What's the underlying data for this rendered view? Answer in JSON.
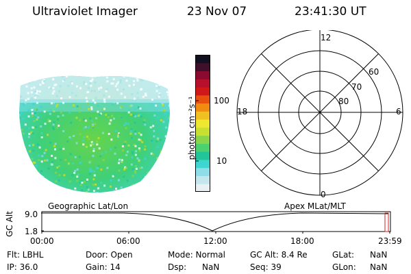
{
  "header": {
    "instrument": "Ultraviolet Imager",
    "date": "23 Nov 07",
    "time": "23:41:30 UT"
  },
  "colorbar": {
    "unit_label": "photon cm⁻²s⁻¹",
    "tick_labels": [
      "100",
      "10"
    ],
    "colors": [
      "#e8f0f4",
      "#c6e6ee",
      "#8fdde8",
      "#3fd6d2",
      "#22c49a",
      "#4cd070",
      "#8ad64a",
      "#c8e030",
      "#eee830",
      "#f0c020",
      "#f08c10",
      "#e85010",
      "#d01818",
      "#b8102a",
      "#8a0a30",
      "#40102a",
      "#101020"
    ]
  },
  "polar_plot": {
    "labels": {
      "noon": "12",
      "midnight": "0",
      "dusk": "18",
      "dawn": "6",
      "lat_60": "60",
      "lat_70": "70",
      "lat_80": "80"
    }
  },
  "altitude_plot": {
    "ylabel": "GC Alt",
    "y_top": "9.0",
    "y_bottom": "1.8",
    "left_title": "Geographic Lat/Lon",
    "right_title": "Apex MLat/MLT",
    "x_ticks": [
      "00:00",
      "06:00",
      "12:00",
      "18:00",
      "23:59"
    ]
  },
  "status": {
    "flt": "Flt: LBHL",
    "ip": "IP: 36.0",
    "door": "Door: Open",
    "gain": "Gain: 14",
    "mode": "Mode: Normal",
    "dsp": "Dsp:      NaN",
    "gc_alt": "GC Alt: 8.4 Re",
    "seq": "Seq: 39",
    "glat_label": "GLat:",
    "glat_value": "NaN",
    "glon_label": "GLon:",
    "glon_value": "NaN"
  }
}
